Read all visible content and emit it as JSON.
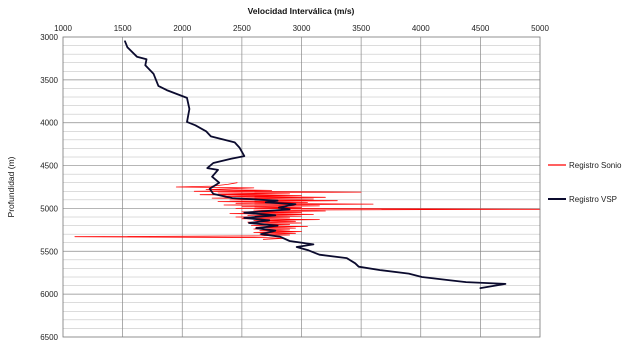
{
  "chart_data": {
    "type": "line",
    "title": "",
    "xlabel": "Velocidad Interválica (m/s)",
    "ylabel": "Profundidad (m)",
    "xlim": [
      1000,
      5000
    ],
    "ylim": [
      3000,
      6500
    ],
    "y_inverted": true,
    "x_axis_position": "top",
    "x_ticks": [
      "1000",
      "1500",
      "2000",
      "2500",
      "3000",
      "3500",
      "4000",
      "4500",
      "5000"
    ],
    "y_ticks": [
      "3000",
      "3500",
      "4000",
      "4500",
      "5000",
      "5500",
      "6000",
      "6500"
    ],
    "grid": {
      "vertical": true,
      "horizontal": true,
      "minor_horizontal_step": 100
    },
    "legend_position": "right",
    "series": [
      {
        "name": "Registro Sonio",
        "color": "#ff0000",
        "points": [
          [
            2460,
            4700
          ],
          [
            2380,
            4720
          ],
          [
            2250,
            4740
          ],
          [
            1950,
            4750
          ],
          [
            2600,
            4760
          ],
          [
            2200,
            4780
          ],
          [
            2750,
            4790
          ],
          [
            2100,
            4800
          ],
          [
            3500,
            4810
          ],
          [
            2300,
            4820
          ],
          [
            2900,
            4830
          ],
          [
            2150,
            4840
          ],
          [
            3000,
            4850
          ],
          [
            2350,
            4860
          ],
          [
            3200,
            4870
          ],
          [
            2250,
            4880
          ],
          [
            3100,
            4890
          ],
          [
            2400,
            4900
          ],
          [
            3300,
            4910
          ],
          [
            2300,
            4920
          ],
          [
            3050,
            4930
          ],
          [
            2450,
            4940
          ],
          [
            3600,
            4950
          ],
          [
            2350,
            4960
          ],
          [
            3150,
            4970
          ],
          [
            2500,
            4980
          ],
          [
            3000,
            4990
          ],
          [
            2450,
            5000
          ],
          [
            5000,
            5010
          ],
          [
            2600,
            5020
          ],
          [
            3200,
            5030
          ],
          [
            2500,
            5040
          ],
          [
            3000,
            5050
          ],
          [
            2400,
            5060
          ],
          [
            3100,
            5070
          ],
          [
            2550,
            5080
          ],
          [
            3000,
            5090
          ],
          [
            2450,
            5100
          ],
          [
            2900,
            5110
          ],
          [
            2500,
            5120
          ],
          [
            3150,
            5130
          ],
          [
            2600,
            5140
          ],
          [
            2950,
            5150
          ],
          [
            2550,
            5160
          ],
          [
            3000,
            5170
          ],
          [
            2600,
            5180
          ],
          [
            2900,
            5190
          ],
          [
            2580,
            5200
          ],
          [
            3050,
            5210
          ],
          [
            2620,
            5220
          ],
          [
            2950,
            5230
          ],
          [
            2600,
            5240
          ],
          [
            2900,
            5250
          ],
          [
            2650,
            5260
          ],
          [
            3000,
            5270
          ],
          [
            2600,
            5280
          ],
          [
            2950,
            5290
          ],
          [
            2650,
            5300
          ],
          [
            2900,
            5310
          ],
          [
            2650,
            5320
          ],
          [
            1100,
            5330
          ],
          [
            2700,
            5340
          ],
          [
            2850,
            5350
          ],
          [
            2680,
            5360
          ]
        ]
      },
      {
        "name": "Registro VSP",
        "color": "#0b0b2e",
        "points": [
          [
            1520,
            3050
          ],
          [
            1540,
            3120
          ],
          [
            1620,
            3230
          ],
          [
            1700,
            3260
          ],
          [
            1690,
            3330
          ],
          [
            1760,
            3430
          ],
          [
            1800,
            3570
          ],
          [
            1870,
            3620
          ],
          [
            2040,
            3710
          ],
          [
            2060,
            3840
          ],
          [
            2040,
            3990
          ],
          [
            2110,
            4030
          ],
          [
            2200,
            4100
          ],
          [
            2240,
            4160
          ],
          [
            2440,
            4230
          ],
          [
            2480,
            4290
          ],
          [
            2520,
            4390
          ],
          [
            2410,
            4420
          ],
          [
            2260,
            4470
          ],
          [
            2210,
            4530
          ],
          [
            2300,
            4550
          ],
          [
            2250,
            4630
          ],
          [
            2310,
            4700
          ],
          [
            2230,
            4770
          ],
          [
            2260,
            4830
          ],
          [
            2420,
            4880
          ],
          [
            2800,
            4910
          ],
          [
            2700,
            4930
          ],
          [
            2950,
            4950
          ],
          [
            2810,
            4990
          ],
          [
            2900,
            5010
          ],
          [
            2520,
            5050
          ],
          [
            2780,
            5080
          ],
          [
            2520,
            5110
          ],
          [
            2730,
            5140
          ],
          [
            2560,
            5170
          ],
          [
            2800,
            5200
          ],
          [
            2620,
            5230
          ],
          [
            2780,
            5260
          ],
          [
            2660,
            5300
          ],
          [
            2820,
            5330
          ],
          [
            2900,
            5380
          ],
          [
            3100,
            5420
          ],
          [
            2960,
            5450
          ],
          [
            3060,
            5490
          ],
          [
            3150,
            5540
          ],
          [
            3380,
            5580
          ],
          [
            3450,
            5640
          ],
          [
            3480,
            5680
          ],
          [
            3660,
            5720
          ],
          [
            3900,
            5760
          ],
          [
            4010,
            5800
          ],
          [
            4250,
            5840
          ],
          [
            4380,
            5860
          ],
          [
            4710,
            5880
          ],
          [
            4500,
            5930
          ]
        ]
      }
    ]
  }
}
